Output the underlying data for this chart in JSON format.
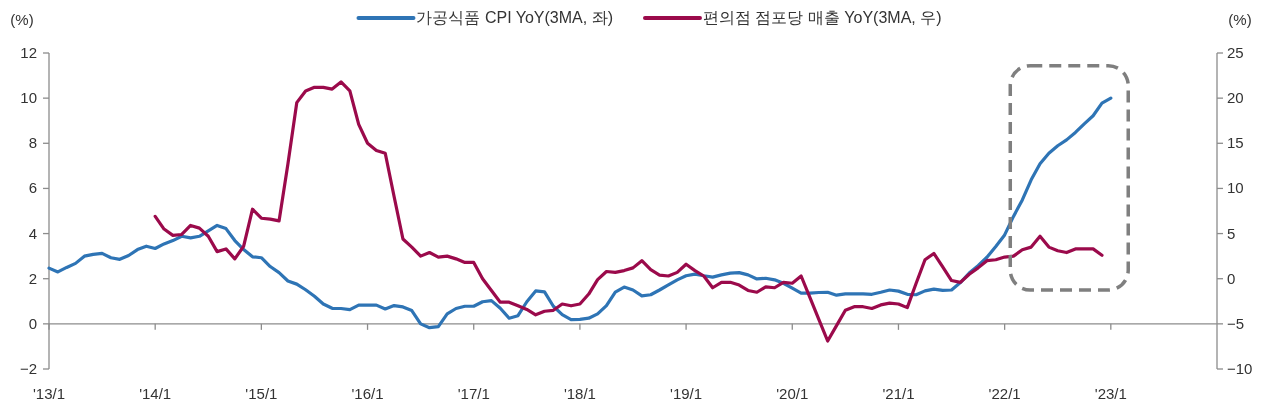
{
  "chart_data": {
    "type": "line",
    "ylabel": "(%)",
    "y2label": "(%)",
    "legend": "top",
    "xlim": [
      "2013-01",
      "2024-01"
    ],
    "xticks": [
      {
        "value": "2013-01",
        "label": "'13/1"
      },
      {
        "value": "2014-01",
        "label": "'14/1"
      },
      {
        "value": "2015-01",
        "label": "'15/1"
      },
      {
        "value": "2016-01",
        "label": "'16/1"
      },
      {
        "value": "2017-01",
        "label": "'17/1"
      },
      {
        "value": "2018-01",
        "label": "'18/1"
      },
      {
        "value": "2019-01",
        "label": "'19/1"
      },
      {
        "value": "2020-01",
        "label": "'20/1"
      },
      {
        "value": "2021-01",
        "label": "'21/1"
      },
      {
        "value": "2022-01",
        "label": "'22/1"
      },
      {
        "value": "2023-01",
        "label": "'23/1"
      }
    ],
    "ylim": [
      -2,
      12
    ],
    "yticks": [
      -2,
      0,
      2,
      4,
      6,
      8,
      10,
      12
    ],
    "y2lim": [
      -10,
      25
    ],
    "y2ticks": [
      -10,
      -5,
      0,
      5,
      10,
      15,
      20,
      25
    ],
    "x": [
      "2013-01",
      "2013-02",
      "2013-03",
      "2013-04",
      "2013-05",
      "2013-06",
      "2013-07",
      "2013-08",
      "2013-09",
      "2013-10",
      "2013-11",
      "2013-12",
      "2014-01",
      "2014-02",
      "2014-03",
      "2014-04",
      "2014-05",
      "2014-06",
      "2014-07",
      "2014-08",
      "2014-09",
      "2014-10",
      "2014-11",
      "2014-12",
      "2015-01",
      "2015-02",
      "2015-03",
      "2015-04",
      "2015-05",
      "2015-06",
      "2015-07",
      "2015-08",
      "2015-09",
      "2015-10",
      "2015-11",
      "2015-12",
      "2016-01",
      "2016-02",
      "2016-03",
      "2016-04",
      "2016-05",
      "2016-06",
      "2016-07",
      "2016-08",
      "2016-09",
      "2016-10",
      "2016-11",
      "2016-12",
      "2017-01",
      "2017-02",
      "2017-03",
      "2017-04",
      "2017-05",
      "2017-06",
      "2017-07",
      "2017-08",
      "2017-09",
      "2017-10",
      "2017-11",
      "2017-12",
      "2018-01",
      "2018-02",
      "2018-03",
      "2018-04",
      "2018-05",
      "2018-06",
      "2018-07",
      "2018-08",
      "2018-09",
      "2018-10",
      "2018-11",
      "2018-12",
      "2019-01",
      "2019-02",
      "2019-03",
      "2019-04",
      "2019-05",
      "2019-06",
      "2019-07",
      "2019-08",
      "2019-09",
      "2019-10",
      "2019-11",
      "2019-12",
      "2020-01",
      "2020-02",
      "2020-03",
      "2020-04",
      "2020-05",
      "2020-06",
      "2020-07",
      "2020-08",
      "2020-09",
      "2020-10",
      "2020-11",
      "2020-12",
      "2021-01",
      "2021-02",
      "2021-03",
      "2021-04",
      "2021-05",
      "2021-06",
      "2021-07",
      "2021-08",
      "2021-09",
      "2021-10",
      "2021-11",
      "2021-12",
      "2022-01",
      "2022-02",
      "2022-03",
      "2022-04",
      "2022-05",
      "2022-06",
      "2022-07",
      "2022-08",
      "2022-09",
      "2022-10",
      "2022-11",
      "2022-12",
      "2023-01"
    ],
    "series": [
      {
        "name": "가공식품 CPI YoY(3MA, 좌)",
        "color": "#2e74b5",
        "values": [
          2.47,
          2.3,
          2.5,
          2.68,
          3.0,
          3.08,
          3.12,
          2.93,
          2.86,
          3.03,
          3.29,
          3.44,
          3.34,
          3.54,
          3.69,
          3.88,
          3.81,
          3.88,
          4.12,
          4.36,
          4.22,
          3.69,
          3.29,
          2.97,
          2.93,
          2.54,
          2.27,
          1.9,
          1.76,
          1.51,
          1.22,
          0.88,
          0.69,
          0.68,
          0.63,
          0.83,
          0.83,
          0.83,
          0.66,
          0.81,
          0.75,
          0.59,
          0,
          -0.17,
          -0.12,
          0.44,
          0.68,
          0.78,
          0.78,
          0.98,
          1.03,
          0.69,
          0.25,
          0.36,
          0.98,
          1.46,
          1.42,
          0.78,
          0.41,
          0.19,
          0.2,
          0.25,
          0.44,
          0.81,
          1.41,
          1.63,
          1.5,
          1.24,
          1.29,
          1.5,
          1.73,
          1.95,
          2.13,
          2.2,
          2.13,
          2.07,
          2.17,
          2.25,
          2.27,
          2.17,
          1.99,
          2.02,
          1.95,
          1.8,
          1.58,
          1.36,
          1.36,
          1.39,
          1.4,
          1.27,
          1.33,
          1.33,
          1.33,
          1.31,
          1.4,
          1.5,
          1.45,
          1.31,
          1.29,
          1.46,
          1.54,
          1.48,
          1.5,
          1.83,
          2.25,
          2.58,
          2.95,
          3.43,
          3.94,
          4.76,
          5.49,
          6.38,
          7.09,
          7.56,
          7.89,
          8.15,
          8.48,
          8.86,
          9.22,
          9.78,
          10.0
        ]
      },
      {
        "name": "편의점 점포당 매출 YoY(3MA, 우)",
        "color": "#9b0a4b",
        "axis": "y2",
        "values": [
          null,
          null,
          null,
          null,
          null,
          null,
          null,
          null,
          null,
          null,
          null,
          null,
          6.9,
          5.5,
          4.8,
          4.9,
          5.9,
          5.6,
          4.7,
          3.0,
          3.3,
          2.2,
          3.6,
          7.7,
          6.7,
          6.6,
          6.4,
          12.7,
          19.5,
          20.8,
          21.2,
          21.2,
          21.0,
          21.8,
          20.8,
          17.1,
          15.0,
          14.2,
          13.9,
          9.1,
          4.4,
          3.5,
          2.5,
          2.9,
          2.4,
          2.5,
          2.2,
          1.8,
          1.8,
          0.0,
          -1.3,
          -2.6,
          -2.6,
          -3.0,
          -3.4,
          -4.0,
          -3.6,
          -3.5,
          -2.8,
          -3.0,
          -2.8,
          -1.7,
          -0.1,
          0.8,
          0.7,
          0.9,
          1.2,
          2.0,
          1.0,
          0.4,
          0.3,
          0.7,
          1.6,
          0.9,
          0.3,
          -1.0,
          -0.4,
          -0.4,
          -0.7,
          -1.3,
          -1.5,
          -0.9,
          -1.0,
          -0.4,
          -0.5,
          0.3,
          -2.1,
          -4.5,
          -6.9,
          -5.2,
          -3.5,
          -3.1,
          -3.1,
          -3.3,
          -2.9,
          -2.7,
          -2.8,
          -3.2,
          -0.5,
          2.1,
          2.8,
          1.3,
          -0.2,
          -0.4,
          0.5,
          1.2,
          2.0,
          2.1,
          2.4,
          2.5,
          3.2,
          3.5,
          4.7,
          3.5,
          3.1,
          2.9,
          3.3,
          3.3,
          3.3,
          2.6,
          null
        ]
      }
    ]
  }
}
